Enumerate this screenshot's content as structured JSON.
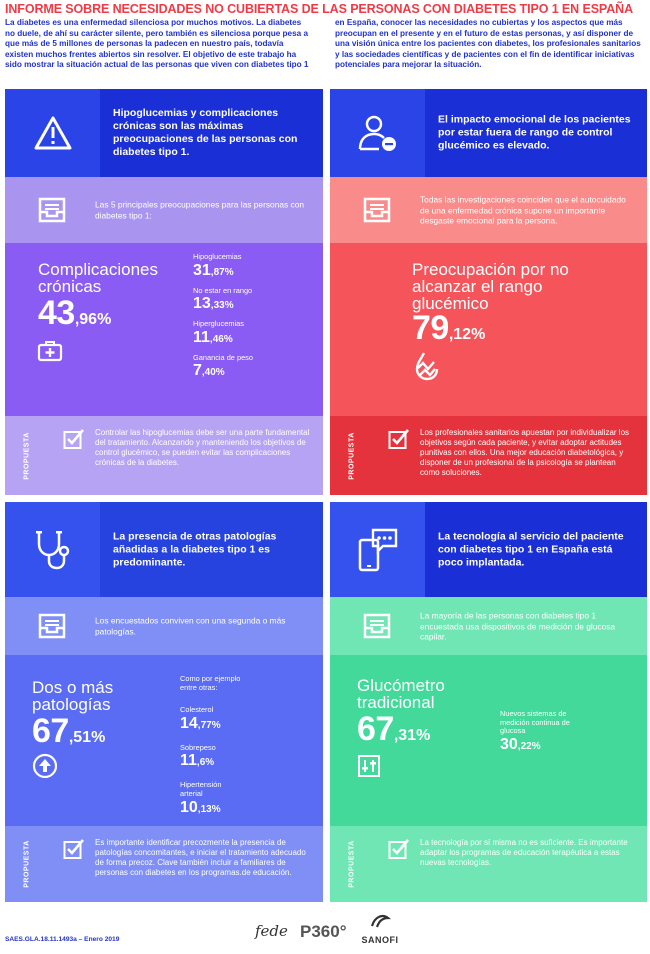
{
  "title": "INFORME SOBRE NECESIDADES NO CUBIERTAS DE LAS PERSONAS CON DIABETES TIPO 1 EN ESPAÑA",
  "intro": {
    "left": "La diabetes es una enfermedad silenciosa por muchos motivos. La diabetes no duele, de ahí su carácter silente, pero también es silenciosa porque pesa a que más de 5 millones de personas la padecen en nuestro país, todavía existen muchos frentes abiertos sin resolver. El objetivo de este trabajo ha sido mostrar la situación actual de las personas que viven con diabetes tipo 1",
    "right": "en España, conocer las necesidades no cubiertas y los aspectos que más preocupan en el presente y en el futuro de estas personas, y así disponer de una visión única entre los pacientes con diabetes, los profesionales sanitarios y las sociedades científicas y de pacientes con el fin de identificar iniciativas potenciales para mejorar la situación."
  },
  "colors": {
    "title": "#ef3b45",
    "navy": "#1a2fd6",
    "navy_icon": "#2a44e8",
    "purple_light": "#a995f0",
    "purple": "#8a5cf4",
    "purple_prop": "#b7a3f4",
    "red_dark": "#e5333d",
    "red": "#f5545b",
    "red_light": "#f98c8a",
    "blue_head": "#2643e0",
    "blue": "#5a6cf3",
    "blue_light": "#7f8ff6",
    "green": "#42d99b",
    "green_light": "#6fe6b3"
  },
  "panels": {
    "hipo": {
      "heading": "Hipoglucemias y complicaciones crónicas son las máximas preocupaciones de las personas con diabetes tipo 1.",
      "icon": "warning-icon",
      "subtitle": "Las 5 principales preocupaciones para las personas con diabetes tipo 1:",
      "big_label": "Complicaciones crónicas",
      "big_int": "43",
      "big_dec": ",96%",
      "items": [
        {
          "label": "Hipoglucemias",
          "int": "31",
          "dec": ",87%"
        },
        {
          "label": "No estar en rango",
          "int": "13",
          "dec": ",33%"
        },
        {
          "label": "Hiperglucemias",
          "int": "11",
          "dec": ",46%"
        },
        {
          "label": "Ganancia de peso",
          "int": "7",
          "dec": ",40%"
        }
      ],
      "proposal_label": "PROPUESTA",
      "proposal": "Controlar las hipoglucemias debe ser una parte fundamental del tratamiento. Alcanzando y manteniendo los objetivos de control glucémico, se pueden evitar las complicaciones crónicas de la diabetes."
    },
    "emocional": {
      "heading": "El impacto emocional de los pacientes por estar fuera de rango de control glucémico es elevado.",
      "icon": "user-minus-icon",
      "subtitle": "Todas las investigaciones coinciden que el autocuidado de una enfermedad crónica supone un importante desgaste emocional para la persona.",
      "big_label": "Preocupación por no alcanzar el rango glucémico",
      "big_int": "79",
      "big_dec": ",12%",
      "proposal_label": "PROPUESTA",
      "proposal": "Los profesionales sanitarios apuestan por individualizar los objetivos según cada paciente, y evitar adoptar actitudes punitivas con ellos. Una mejor educación diabetológica, y disponer de un profesional de la psicología se plantean como soluciones."
    },
    "patologias": {
      "heading": "La presencia de otras patologías añadidas a la diabetes tipo 1 es predominante.",
      "icon": "stethoscope-icon",
      "subtitle": "Los encuestados conviven con una segunda o más patologías.",
      "big_label": "Dos o más patologías",
      "big_int": "67",
      "big_dec": ",51%",
      "intro_small": "Como por ejemplo entre otras:",
      "items": [
        {
          "label": "Colesterol",
          "int": "14",
          "dec": ",77%"
        },
        {
          "label": "Sobrepeso",
          "int": "11",
          "dec": ",6%"
        },
        {
          "label": "Hipertensión arterial",
          "int": "10",
          "dec": ",13%"
        }
      ],
      "proposal_label": "PROPUESTA",
      "proposal": "Es importante identificar precozmente la presencia de patologías concomitantes, e iniciar el tratamiento adecuado de forma precoz. Clave también incluir a familiares de personas con diabetes en los programas.de educación."
    },
    "tecnologia": {
      "heading": "La tecnología al servicio del paciente con diabetes tipo 1 en España está poco implantada.",
      "icon": "phone-chat-icon",
      "subtitle": "La mayoría de las personas con diabetes tipo 1 encuestada usa dispositivos de medición de glucosa capilar.",
      "big_label": "Glucómetro tradicional",
      "big_int": "67",
      "big_dec": ",31%",
      "items": [
        {
          "label": "Nuevos sistemas de medición continua de glucosa",
          "int": "30",
          "dec": ",22%"
        }
      ],
      "proposal_label": "PROPUESTA",
      "proposal": "La tecnología por sí misma no es suficiente. Es importante adaptar los programas de educación terapéutica a estas nuevas tecnologías."
    }
  },
  "footer": {
    "code": "SAES.GLA.18.11.1493a – Enero 2019",
    "logo1": "fede",
    "logo2": "P360°",
    "logo3": "SANOFI"
  }
}
